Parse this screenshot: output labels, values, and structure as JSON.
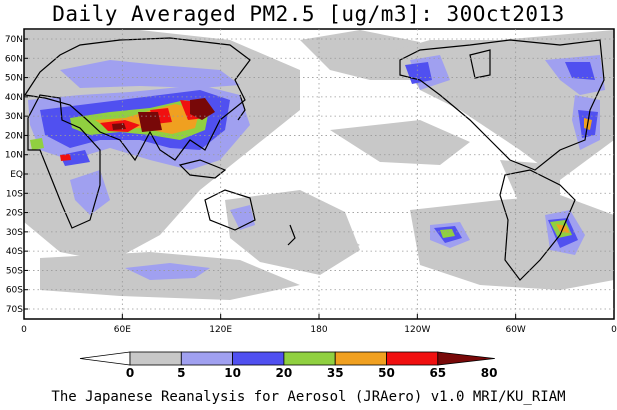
{
  "title": "Daily Averaged PM2.5 [ug/m3]: 30Oct2013",
  "credit": "The Japanese Reanalysis for Aerosol (JRAero) v1.0 MRI/KU_RIAM",
  "lat_labels": [
    "70N",
    "60N",
    "50N",
    "40N",
    "30N",
    "20N",
    "10N",
    "EQ",
    "10S",
    "20S",
    "30S",
    "40S",
    "50S",
    "60S",
    "70S"
  ],
  "lon_labels": [
    "0",
    "60E",
    "120E",
    "180",
    "120W",
    "60W",
    "0"
  ],
  "colorbar": {
    "labels": [
      "0",
      "5",
      "10",
      "20",
      "35",
      "50",
      "65",
      "80"
    ],
    "colors": [
      "#ffffff",
      "#c8c8c8",
      "#a0a0f0",
      "#5050f0",
      "#90d040",
      "#f0a020",
      "#f01010",
      "#780808"
    ]
  }
}
